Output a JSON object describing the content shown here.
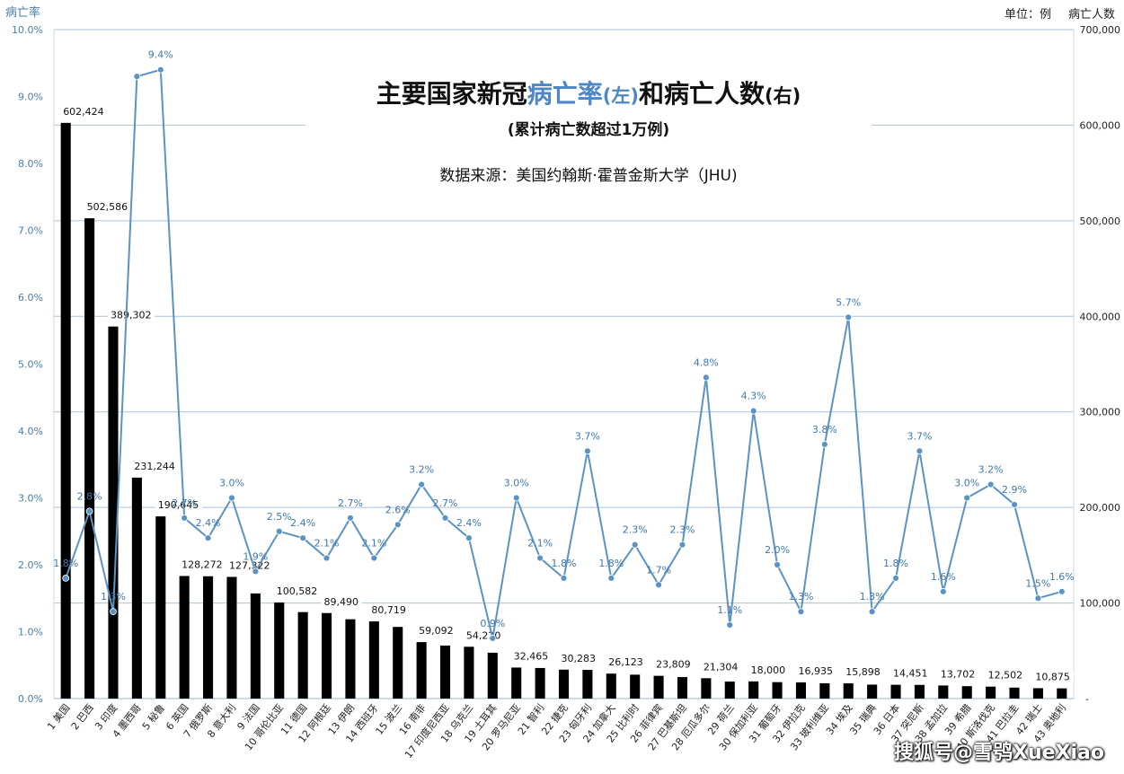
{
  "title": {
    "part1": "主要国家新冠",
    "part2": "病亡率",
    "part3": "(左)",
    "part4": "和病亡人数",
    "part5": "(右)",
    "subtitle": "(累计病亡数超过1万例)",
    "source": "数据来源：美国约翰斯·霍普金斯大学（JHU)"
  },
  "watermark": "搜狐号@雪鸮XueXiao",
  "colors": {
    "bar": "#000000",
    "line": "#5b93c2",
    "grid": "#aac3d6",
    "axis_text": "#4a7ea8"
  },
  "chart_data": {
    "type": "bar+line",
    "categories": [
      "1 美国",
      "2 巴西",
      "3 印度",
      "4 墨西哥",
      "5 秘鲁",
      "6 英国",
      "7 俄罗斯",
      "8 意大利",
      "9 法国",
      "10 哥伦比亚",
      "11 德国",
      "12 阿根廷",
      "13 伊朗",
      "14 西班牙",
      "15 波兰",
      "16 南非",
      "17 印度尼西亚",
      "18 乌克兰",
      "19 土耳其",
      "20 罗马尼亚",
      "21 智利",
      "22 捷克",
      "23 匈牙利",
      "24 加拿大",
      "25 比利时",
      "26 菲律宾",
      "27 巴基斯坦",
      "28 厄瓜多尔",
      "29 荷兰",
      "30 保加利亚",
      "31 葡萄牙",
      "32 伊拉克",
      "33 玻利维亚",
      "34 埃及",
      "35 瑞典",
      "36 日本",
      "37 突尼斯",
      "38 孟加拉",
      "39 希腊",
      "40 斯洛伐克",
      "41 巴拉圭",
      "42 瑞士",
      "43 奥地利"
    ],
    "left_axis": {
      "label": "病亡率",
      "min": 0,
      "max": 10,
      "ticks": [
        "0.0%",
        "1.0%",
        "2.0%",
        "3.0%",
        "4.0%",
        "5.0%",
        "6.0%",
        "7.0%",
        "8.0%",
        "9.0%",
        "10.0%"
      ]
    },
    "right_axis": {
      "label": "病亡人数",
      "unit_label": "单位：例",
      "min": 0,
      "max": 700000,
      "ticks": [
        "-",
        "100,000",
        "200,000",
        "300,000",
        "400,000",
        "500,000",
        "600,000",
        "700,000"
      ]
    },
    "grid": true,
    "series": [
      {
        "name": "病亡人数",
        "type": "bar",
        "axis": "right",
        "values": [
          602424,
          502586,
          389302,
          231244,
          190645,
          128272,
          128000,
          127322,
          110000,
          100582,
          90500,
          89490,
          83000,
          80719,
          75000,
          59092,
          55500,
          54220,
          48000,
          32465,
          32000,
          30283,
          30000,
          26123,
          25000,
          23809,
          22500,
          21304,
          17800,
          18000,
          17200,
          16935,
          16000,
          15898,
          14600,
          14451,
          14300,
          13702,
          13000,
          12502,
          11500,
          10875,
          10700
        ],
        "labels": [
          "602,424",
          "502,586",
          "389,302",
          "231,244",
          "190,645",
          "128,272",
          "",
          "127,322",
          "",
          "100,582",
          "",
          "89,490",
          "",
          "80,719",
          "",
          "59,092",
          "",
          "54,220",
          "",
          "32,465",
          "",
          "30,283",
          "",
          "26,123",
          "",
          "23,809",
          "",
          "21,304",
          "",
          "18,000",
          "",
          "16,935",
          "",
          "15,898",
          "",
          "14,451",
          "",
          "13,702",
          "",
          "12,502",
          "",
          "10,875",
          ""
        ]
      },
      {
        "name": "病亡率",
        "type": "line",
        "axis": "left",
        "values": [
          1.8,
          2.8,
          1.3,
          9.3,
          9.4,
          2.7,
          2.4,
          3.0,
          1.9,
          2.5,
          2.4,
          2.1,
          2.7,
          2.1,
          2.6,
          3.2,
          2.7,
          2.4,
          0.9,
          3.0,
          2.1,
          1.8,
          3.7,
          1.8,
          2.3,
          1.7,
          2.3,
          4.8,
          1.1,
          4.3,
          2.0,
          1.3,
          3.8,
          5.7,
          1.3,
          1.8,
          3.7,
          1.6,
          3.0,
          3.2,
          2.9,
          1.5,
          1.6
        ],
        "labels": [
          "1.8%",
          "2.8%",
          "1.3%",
          "",
          "9.4%",
          "2.7%",
          "2.4%",
          "3.0%",
          "1.9%",
          "2.5%",
          "2.4%",
          "2.1%",
          "2.7%",
          "2.1%",
          "2.6%",
          "3.2%",
          "2.7%",
          "2.4%",
          "0.9%",
          "3.0%",
          "2.1%",
          "1.8%",
          "3.7%",
          "1.8%",
          "2.3%",
          "1.7%",
          "2.3%",
          "4.8%",
          "1.1%",
          "4.3%",
          "2.0%",
          "1.3%",
          "3.8%",
          "5.7%",
          "1.3%",
          "1.8%",
          "3.7%",
          "1.6%",
          "3.0%",
          "3.2%",
          "2.9%",
          "1.5%",
          "1.6%"
        ]
      }
    ]
  }
}
